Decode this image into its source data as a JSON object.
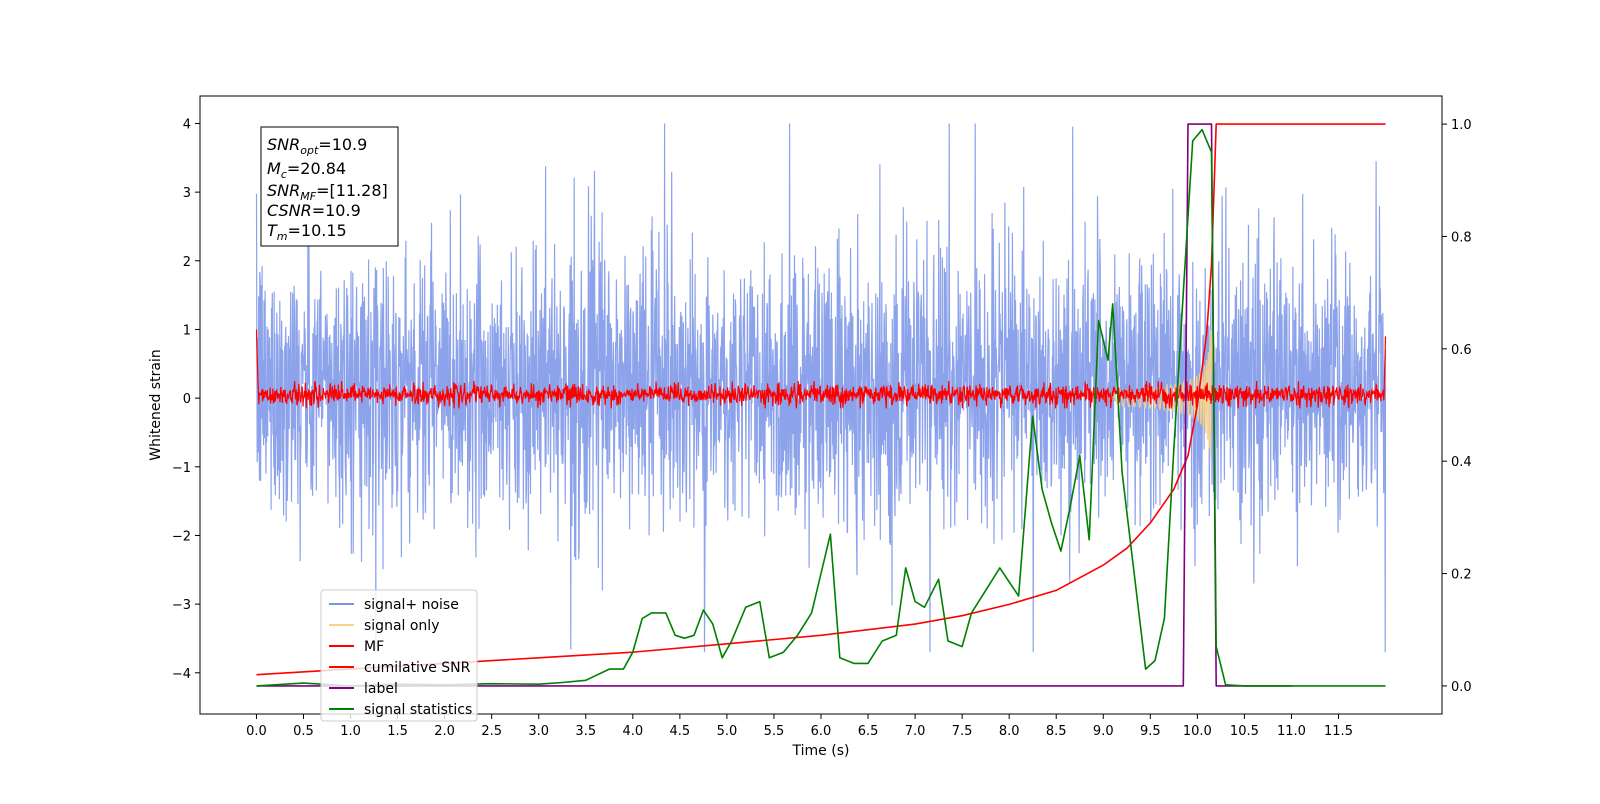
{
  "chart_data": {
    "type": "line",
    "title": "",
    "xlabel": "Time (s)",
    "ylabel": "Whitened strain",
    "xlim": [
      -0.6,
      12.6
    ],
    "ylim": [
      -4.6,
      4.4
    ],
    "y2lim": [
      -0.05,
      1.05
    ],
    "grid": false,
    "legend_loc": "lower left",
    "x_ticks": [
      0.0,
      0.5,
      1.0,
      1.5,
      2.0,
      2.5,
      3.0,
      3.5,
      4.0,
      4.5,
      5.0,
      5.5,
      6.0,
      6.5,
      7.0,
      7.5,
      8.0,
      8.5,
      9.0,
      9.5,
      10.0,
      10.5,
      11.0,
      11.5
    ],
    "x_tick_labels": [
      "0.0",
      "0.5",
      "1.0",
      "1.5",
      "2.0",
      "2.5",
      "3.0",
      "3.5",
      "4.0",
      "4.5",
      "5.0",
      "5.5",
      "6.0",
      "6.5",
      "7.0",
      "7.5",
      "8.0",
      "8.5",
      "9.0",
      "9.5",
      "10.0",
      "10.5",
      "11.0",
      "11.5"
    ],
    "y_ticks": [
      -4,
      -3,
      -2,
      -1,
      0,
      1,
      2,
      3,
      4
    ],
    "y_tick_labels": [
      "−4",
      "−3",
      "−2",
      "−1",
      "0",
      "1",
      "2",
      "3",
      "4"
    ],
    "y2_ticks": [
      0.0,
      0.2,
      0.4,
      0.6,
      0.8,
      1.0
    ],
    "y2_tick_labels": [
      "0.0",
      "0.2",
      "0.4",
      "0.6",
      "0.8",
      "1.0"
    ],
    "annotation": [
      {
        "base": "SNR",
        "sub": "opt",
        "value": "=10.9"
      },
      {
        "base": "M",
        "sub": "c",
        "value": "=20.84"
      },
      {
        "base": "SNR",
        "sub": "MF",
        "value": "=[11.28]"
      },
      {
        "base": "CSNR",
        "sub": "",
        "value": "=10.9"
      },
      {
        "base": "T",
        "sub": "m",
        "value": "=10.15"
      }
    ],
    "legend": [
      {
        "name": "signal+ noise",
        "color": "#7893e8"
      },
      {
        "name": "signal only",
        "color": "#f7d38a"
      },
      {
        "name": "MF",
        "color": "#ff0000"
      },
      {
        "name": "cumilative SNR",
        "color": "#ff0000"
      },
      {
        "name": "label",
        "color": "#800080"
      },
      {
        "name": "signal statistics",
        "color": "#008000"
      }
    ],
    "series": [
      {
        "name": "signal+ noise",
        "axis": "left",
        "color": "#7893e8",
        "x_range": [
          0.0,
          12.0
        ],
        "envelope_typical": [
          -1.6,
          2.0
        ],
        "envelope_extreme": [
          -4.0,
          4.0
        ]
      },
      {
        "name": "signal only",
        "axis": "left",
        "color": "#f7d38a",
        "chirp_start": 9.0,
        "merger": 10.15,
        "peak_amplitude": 1.2
      },
      {
        "name": "MF",
        "axis": "left",
        "color": "#ff0000",
        "x_range": [
          0.0,
          12.0
        ],
        "band": [
          -0.1,
          0.2
        ]
      },
      {
        "name": "cumilative SNR",
        "axis": "right",
        "color": "#ff0000",
        "x": [
          0.0,
          1.0,
          2.0,
          3.0,
          4.0,
          5.0,
          6.0,
          7.0,
          7.5,
          8.0,
          8.5,
          9.0,
          9.25,
          9.5,
          9.75,
          9.9,
          10.0,
          10.1,
          10.15,
          10.2,
          11.0,
          12.0
        ],
        "y": [
          0.02,
          0.03,
          0.04,
          0.05,
          0.06,
          0.075,
          0.09,
          0.11,
          0.125,
          0.145,
          0.17,
          0.215,
          0.245,
          0.29,
          0.35,
          0.41,
          0.5,
          0.63,
          0.75,
          1.0,
          1.0,
          1.0
        ]
      },
      {
        "name": "label",
        "axis": "right",
        "color": "#800080",
        "x": [
          0.0,
          9.85,
          9.9,
          10.15,
          10.2,
          11.0
        ],
        "y": [
          0.0,
          0.0,
          1.0,
          1.0,
          0.0,
          0.0
        ]
      },
      {
        "name": "signal statistics",
        "axis": "right",
        "color": "#008000",
        "x": [
          0.0,
          0.5,
          1.0,
          1.5,
          2.0,
          2.5,
          3.0,
          3.25,
          3.5,
          3.75,
          3.9,
          4.0,
          4.1,
          4.2,
          4.35,
          4.45,
          4.55,
          4.65,
          4.75,
          4.85,
          4.95,
          5.05,
          5.2,
          5.35,
          5.45,
          5.6,
          5.75,
          5.9,
          6.0,
          6.1,
          6.2,
          6.35,
          6.5,
          6.65,
          6.8,
          6.9,
          7.0,
          7.1,
          7.25,
          7.35,
          7.5,
          7.6,
          7.75,
          7.9,
          8.1,
          8.25,
          8.35,
          8.45,
          8.55,
          8.65,
          8.75,
          8.85,
          8.95,
          9.05,
          9.1,
          9.2,
          9.3,
          9.45,
          9.55,
          9.65,
          9.75,
          9.85,
          9.95,
          10.05,
          10.15,
          10.2,
          10.3,
          10.5,
          11.0,
          11.5,
          12.0
        ],
        "y": [
          0.0,
          0.005,
          0.0,
          0.003,
          0.002,
          0.004,
          0.003,
          0.006,
          0.01,
          0.03,
          0.03,
          0.06,
          0.12,
          0.13,
          0.13,
          0.09,
          0.085,
          0.09,
          0.135,
          0.11,
          0.05,
          0.08,
          0.14,
          0.15,
          0.05,
          0.06,
          0.09,
          0.13,
          0.2,
          0.27,
          0.05,
          0.04,
          0.04,
          0.08,
          0.09,
          0.21,
          0.15,
          0.14,
          0.19,
          0.08,
          0.07,
          0.13,
          0.17,
          0.21,
          0.16,
          0.48,
          0.35,
          0.29,
          0.24,
          0.32,
          0.41,
          0.26,
          0.65,
          0.58,
          0.68,
          0.38,
          0.24,
          0.03,
          0.045,
          0.12,
          0.42,
          0.7,
          0.97,
          0.99,
          0.95,
          0.07,
          0.002,
          0.0,
          0.0,
          0.0,
          0.0
        ]
      }
    ]
  }
}
